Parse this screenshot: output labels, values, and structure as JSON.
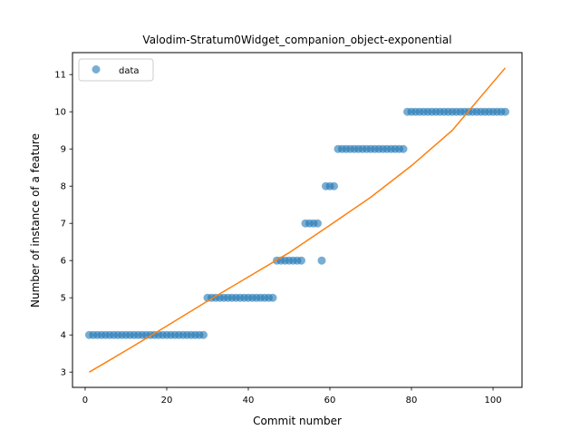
{
  "chart_data": {
    "type": "scatter",
    "title": "Valodim-Stratum0Widget_companion_object-exponential",
    "xlabel": "Commit number",
    "ylabel": "Number of instance of a feature",
    "xlim": [
      -3.1,
      107.1
    ],
    "ylim": [
      2.59,
      11.59
    ],
    "xticks": [
      0,
      20,
      40,
      60,
      80,
      100
    ],
    "yticks": [
      3,
      4,
      5,
      6,
      7,
      8,
      9,
      10,
      11
    ],
    "grid": false,
    "legend": {
      "location": "upper left",
      "entries": [
        "data"
      ]
    },
    "series": [
      {
        "name": "data",
        "kind": "scatter",
        "color": "#1f77b4",
        "alpha": 0.6,
        "x": [
          1,
          2,
          3,
          4,
          5,
          6,
          7,
          8,
          9,
          10,
          11,
          12,
          13,
          14,
          15,
          16,
          17,
          18,
          19,
          20,
          21,
          22,
          23,
          24,
          25,
          26,
          27,
          28,
          29,
          30,
          31,
          32,
          33,
          34,
          35,
          36,
          37,
          38,
          39,
          40,
          41,
          42,
          43,
          44,
          45,
          46,
          47,
          48,
          49,
          50,
          51,
          52,
          53,
          54,
          55,
          56,
          57,
          58,
          59,
          60,
          61,
          62,
          63,
          64,
          65,
          66,
          67,
          68,
          69,
          70,
          71,
          72,
          73,
          74,
          75,
          76,
          77,
          78,
          79,
          80,
          81,
          82,
          83,
          84,
          85,
          86,
          87,
          88,
          89,
          90,
          91,
          92,
          93,
          94,
          95,
          96,
          97,
          98,
          99,
          100,
          101,
          102,
          103
        ],
        "y": [
          4,
          4,
          4,
          4,
          4,
          4,
          4,
          4,
          4,
          4,
          4,
          4,
          4,
          4,
          4,
          4,
          4,
          4,
          4,
          4,
          4,
          4,
          4,
          4,
          4,
          4,
          4,
          4,
          4,
          5,
          5,
          5,
          5,
          5,
          5,
          5,
          5,
          5,
          5,
          5,
          5,
          5,
          5,
          5,
          5,
          5,
          6,
          6,
          6,
          6,
          6,
          6,
          6,
          7,
          7,
          7,
          7,
          6,
          8,
          8,
          8,
          9,
          9,
          9,
          9,
          9,
          9,
          9,
          9,
          9,
          9,
          9,
          9,
          9,
          9,
          9,
          9,
          9,
          10,
          10,
          10,
          10,
          10,
          10,
          10,
          10,
          10,
          10,
          10,
          10,
          10,
          10,
          10,
          10,
          10,
          10,
          10,
          10,
          10,
          10,
          10,
          10,
          10
        ]
      },
      {
        "name": "",
        "kind": "line",
        "color": "#ff7f0e",
        "x": [
          1,
          10,
          20,
          30,
          40,
          50,
          60,
          70,
          80,
          90,
          103
        ],
        "y": [
          3.0,
          3.58,
          4.24,
          4.91,
          5.56,
          6.21,
          6.95,
          7.7,
          8.55,
          9.5,
          11.18
        ]
      }
    ]
  }
}
